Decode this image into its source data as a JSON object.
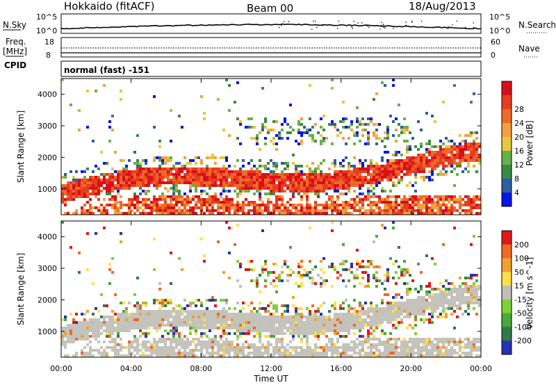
{
  "header": {
    "title": "Hokkaido (fitACF)",
    "beam": "Beam 00",
    "date": "18/Aug/2013"
  },
  "noise_panel": {
    "left_label": "N.Sky",
    "right_label": "N.Search",
    "left_ticks": [
      "10^5",
      "10^0"
    ],
    "right_ticks": [
      "10^5",
      "10^0"
    ]
  },
  "freq_panel": {
    "left_label_line1": "Freq.",
    "left_label_line2": "[MHz]",
    "right_label": "Nave",
    "left_ticks": [
      "18",
      "8"
    ],
    "right_ticks": [
      "60",
      "0"
    ]
  },
  "cpid": {
    "label": "CPID",
    "value": "normal (fast) -151"
  },
  "colors": {
    "power_scale": [
      "#0a14e6",
      "#2d5fa0",
      "#3a8a46",
      "#66b04a",
      "#e8c640",
      "#f0a040",
      "#ee6a28",
      "#e83c1e",
      "#d8101a"
    ],
    "velocity_scale": [
      "#2830b4",
      "#2f7a4a",
      "#4aa83a",
      "#7ed03a",
      "#c0c0b8",
      "#ffe04a",
      "#f0a030",
      "#ee6a24",
      "#e01818"
    ],
    "ground_scatter": "#c4c4bc"
  },
  "chart_data": [
    {
      "type": "heatmap",
      "title": "",
      "xlabel": "",
      "ylabel": "Slant Range [km]",
      "colorbar_label": "Power [dB]",
      "xlim": [
        "00:00",
        "24:00"
      ],
      "ylim": [
        180,
        4500
      ],
      "x_ticks": [
        "00:00",
        "04:00",
        "08:00",
        "12:00",
        "16:00",
        "20:00",
        "00:00"
      ],
      "y_ticks": [
        "1000",
        "2000",
        "3000",
        "4000"
      ],
      "colorbar_ticks": [
        "4",
        "8",
        "12",
        "16",
        "20",
        "24",
        "28"
      ],
      "colorbar_range": [
        0,
        30
      ]
    },
    {
      "type": "heatmap",
      "title": "",
      "xlabel": "Time UT",
      "ylabel": "Slant Range [km]",
      "colorbar_label": "Velocity [m s^-1]",
      "xlim": [
        "00:00",
        "24:00"
      ],
      "ylim": [
        180,
        4500
      ],
      "x_ticks": [
        "00:00",
        "04:00",
        "08:00",
        "12:00",
        "16:00",
        "20:00",
        "00:00"
      ],
      "y_ticks": [
        "1000",
        "2000",
        "3000",
        "4000"
      ],
      "colorbar_ticks": [
        "200",
        "100",
        "50",
        "15",
        "-15",
        "-50",
        "-100",
        "-200"
      ]
    }
  ]
}
